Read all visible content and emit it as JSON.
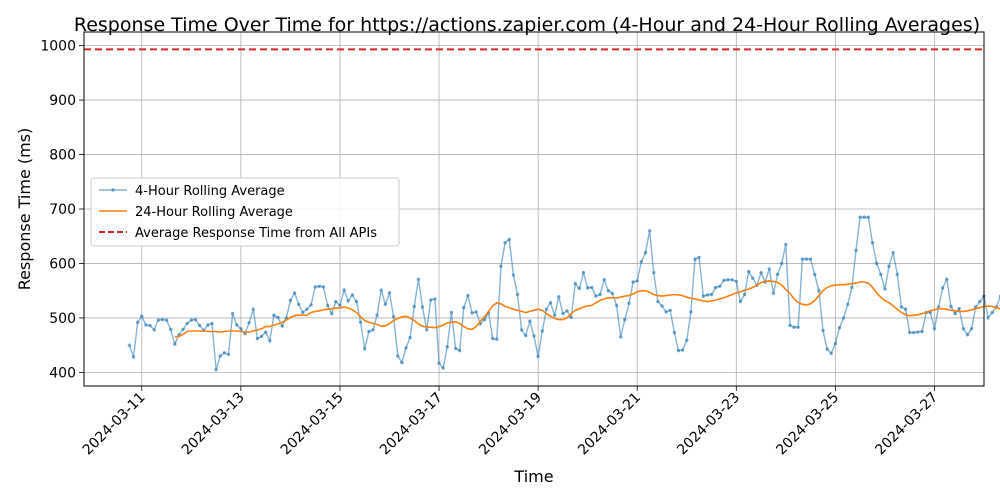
{
  "chart_data": {
    "type": "line",
    "title": "Response Time Over Time for https://actions.zapier.com (4-Hour and 24-Hour Rolling Averages)",
    "xlabel": "Time",
    "ylabel": "Response Time (ms)",
    "x_type": "datetime",
    "xlim": [
      "2024-03-09 20:00",
      "2024-03-28 00:00"
    ],
    "ylim": [
      375,
      1025
    ],
    "x_ticks": [
      "2024-03-11",
      "2024-03-13",
      "2024-03-15",
      "2024-03-17",
      "2024-03-19",
      "2024-03-21",
      "2024-03-23",
      "2024-03-25",
      "2024-03-27"
    ],
    "y_ticks": [
      400,
      500,
      600,
      700,
      800,
      900,
      1000
    ],
    "grid": true,
    "legend_position": "center-left",
    "x_start": "2024-03-10 18:00",
    "x_step_hours": 2,
    "series": [
      {
        "name": "4-Hour Rolling Average",
        "style": "line-with-markers",
        "color": "#1f77b4",
        "values": [
          450,
          428,
          492,
          503,
          487,
          486,
          478,
          496,
          497,
          496,
          479,
          452,
          469,
          479,
          490,
          496,
          497,
          486,
          477,
          487,
          490,
          405,
          430,
          436,
          433,
          508,
          487,
          480,
          471,
          491,
          516,
          462,
          466,
          474,
          458,
          505,
          501,
          485,
          500,
          532,
          546,
          525,
          510,
          516,
          524,
          557,
          558,
          557,
          523,
          508,
          530,
          523,
          551,
          531,
          542,
          530,
          492,
          443,
          475,
          478,
          505,
          551,
          525,
          546,
          502,
          430,
          418,
          445,
          464,
          521,
          571,
          520,
          478,
          533,
          535,
          417,
          408,
          447,
          510,
          444,
          440,
          519,
          541,
          509,
          511,
          489,
          497,
          509,
          462,
          461,
          595,
          638,
          644,
          579,
          543,
          478,
          468,
          494,
          467,
          429,
          476,
          516,
          528,
          505,
          539,
          508,
          513,
          501,
          563,
          554,
          583,
          555,
          556,
          540,
          543,
          570,
          550,
          545,
          523,
          465,
          497,
          527,
          566,
          568,
          603,
          620,
          660,
          583,
          530,
          522,
          511,
          514,
          473,
          440,
          441,
          459,
          511,
          608,
          611,
          540,
          542,
          543,
          556,
          558,
          569,
          570,
          570,
          567,
          530,
          543,
          585,
          573,
          560,
          583,
          566,
          590,
          545,
          580,
          600,
          635,
          486,
          483,
          483,
          608,
          608,
          608,
          580,
          550,
          477,
          443,
          435,
          453,
          482,
          500,
          525,
          556,
          624,
          685,
          685,
          685,
          638,
          600,
          580,
          553,
          595,
          620,
          580,
          520,
          516,
          473,
          473,
          474,
          475,
          510,
          510,
          480,
          520,
          555,
          571,
          521,
          508,
          517,
          480,
          469,
          480,
          520,
          530,
          540,
          500,
          510,
          520,
          540,
          558,
          477,
          480,
          475,
          550,
          551,
          520,
          510,
          530,
          540,
          550,
          510,
          530,
          481,
          430,
          409,
          475,
          520,
          530,
          540,
          545,
          535,
          580,
          590,
          541,
          483,
          510,
          500,
          541
        ]
      },
      {
        "name": "24-Hour Rolling Average",
        "style": "line",
        "color": "#ff7f0e",
        "start_index": 11,
        "values": [
          465,
          466,
          470,
          475,
          476,
          476,
          476,
          476,
          475,
          475,
          475,
          474,
          475,
          476,
          476,
          476,
          475,
          474,
          474,
          476,
          478,
          480,
          484,
          484,
          487,
          489,
          492,
          496,
          501,
          504,
          505,
          505,
          505,
          510,
          512,
          513,
          515,
          516,
          517,
          518,
          518,
          520,
          518,
          515,
          510,
          502,
          495,
          492,
          490,
          488,
          485,
          485,
          490,
          495,
          499,
          502,
          503,
          500,
          495,
          489,
          485,
          483,
          483,
          482,
          484,
          487,
          491,
          492,
          493,
          490,
          484,
          480,
          479,
          484,
          494,
          502,
          512,
          522,
          528,
          526,
          521,
          519,
          516,
          514,
          512,
          510,
          512,
          514,
          516,
          514,
          508,
          503,
          499,
          497,
          497,
          500,
          508,
          514,
          517,
          520,
          522,
          523,
          528,
          532,
          535,
          537,
          537,
          537,
          538,
          540,
          541,
          544,
          548,
          550,
          550,
          547,
          543,
          541,
          540,
          541,
          542,
          543,
          542,
          541,
          538,
          536,
          535,
          533,
          531,
          530,
          531,
          533,
          535,
          537,
          540,
          543,
          546,
          548,
          551,
          553,
          556,
          560,
          565,
          567,
          568,
          567,
          565,
          560,
          552,
          545,
          535,
          528,
          525,
          524,
          526,
          532,
          541,
          550,
          556,
          559,
          560,
          561,
          561,
          562,
          563,
          564,
          566,
          566,
          564,
          556,
          546,
          538,
          532,
          528,
          522,
          516,
          510,
          506,
          504,
          505,
          506,
          508,
          510,
          513,
          515,
          517,
          517,
          516,
          514,
          513,
          512,
          512,
          513,
          515,
          517,
          519,
          521,
          522,
          521,
          519,
          516,
          513,
          510,
          506,
          502,
          500,
          501,
          503,
          505,
          507,
          508,
          509,
          510,
          512,
          513,
          514,
          512,
          511,
          509,
          508,
          507,
          510,
          512
        ]
      },
      {
        "name": "Average Response Time from All APIs",
        "style": "dashed-hline",
        "color": "#d62728",
        "value": 993
      }
    ]
  }
}
